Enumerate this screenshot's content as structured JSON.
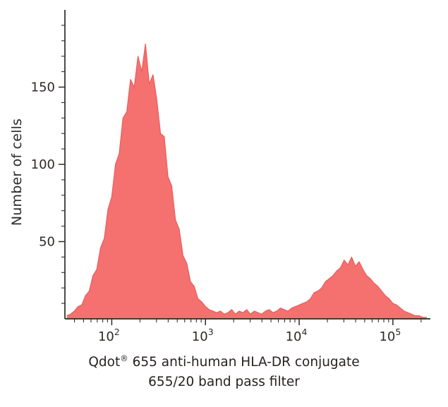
{
  "figure": {
    "y_axis_label": "Number of cells",
    "title_pre": "Qdot",
    "title_reg": "®",
    "title_post": " 655 anti-human HLA-DR conjugate",
    "title_line2": "655/20 band pass filter"
  },
  "chart_data": {
    "type": "area",
    "subtype": "flow-cytometry-histogram",
    "title": "Qdot 655 anti-human HLA-DR conjugate 655/20 band pass filter",
    "xlabel": "Qdot 655 anti-human HLA-DR conjugate 655/20 band pass filter",
    "ylabel": "Number of cells",
    "x_scale": "log10",
    "x_range_log10": [
      1.5,
      5.4
    ],
    "y_range": [
      0,
      200
    ],
    "grid": false,
    "legend": "none",
    "x_major_ticks": [
      {
        "log10": 2,
        "base": "10",
        "exp": "2"
      },
      {
        "log10": 3,
        "base": "10",
        "exp": "3"
      },
      {
        "log10": 4,
        "base": "10",
        "exp": "4"
      },
      {
        "log10": 5,
        "base": "10",
        "exp": "5"
      }
    ],
    "y_major_ticks": [
      50,
      100,
      150
    ],
    "y_minor_step": 10,
    "colors": {
      "fill": "#F4716F",
      "stroke": "#ED5B5B",
      "axis": "#2E2A27",
      "text": "#2E2A27",
      "background": "#FFFFFF"
    },
    "histogram": {
      "log10_start": 1.52,
      "log10_step": 0.04,
      "counts": [
        2,
        3,
        5,
        8,
        9,
        15,
        18,
        28,
        32,
        46,
        52,
        71,
        79,
        100,
        107,
        130,
        134,
        155,
        150,
        170,
        160,
        178,
        152,
        158,
        142,
        120,
        118,
        92,
        86,
        64,
        58,
        41,
        36,
        24,
        21,
        13,
        11,
        8,
        6,
        5,
        4,
        5,
        3,
        4,
        6,
        3,
        5,
        4,
        6,
        3,
        5,
        4,
        3,
        5,
        6,
        4,
        5,
        7,
        6,
        5,
        7,
        8,
        9,
        10,
        11,
        13,
        17,
        18,
        20,
        24,
        26,
        28,
        31,
        33,
        38,
        35,
        40,
        34,
        37,
        32,
        28,
        26,
        23,
        21,
        18,
        15,
        13,
        10,
        9,
        7,
        5,
        4,
        3,
        2,
        2,
        1,
        1
      ]
    }
  }
}
